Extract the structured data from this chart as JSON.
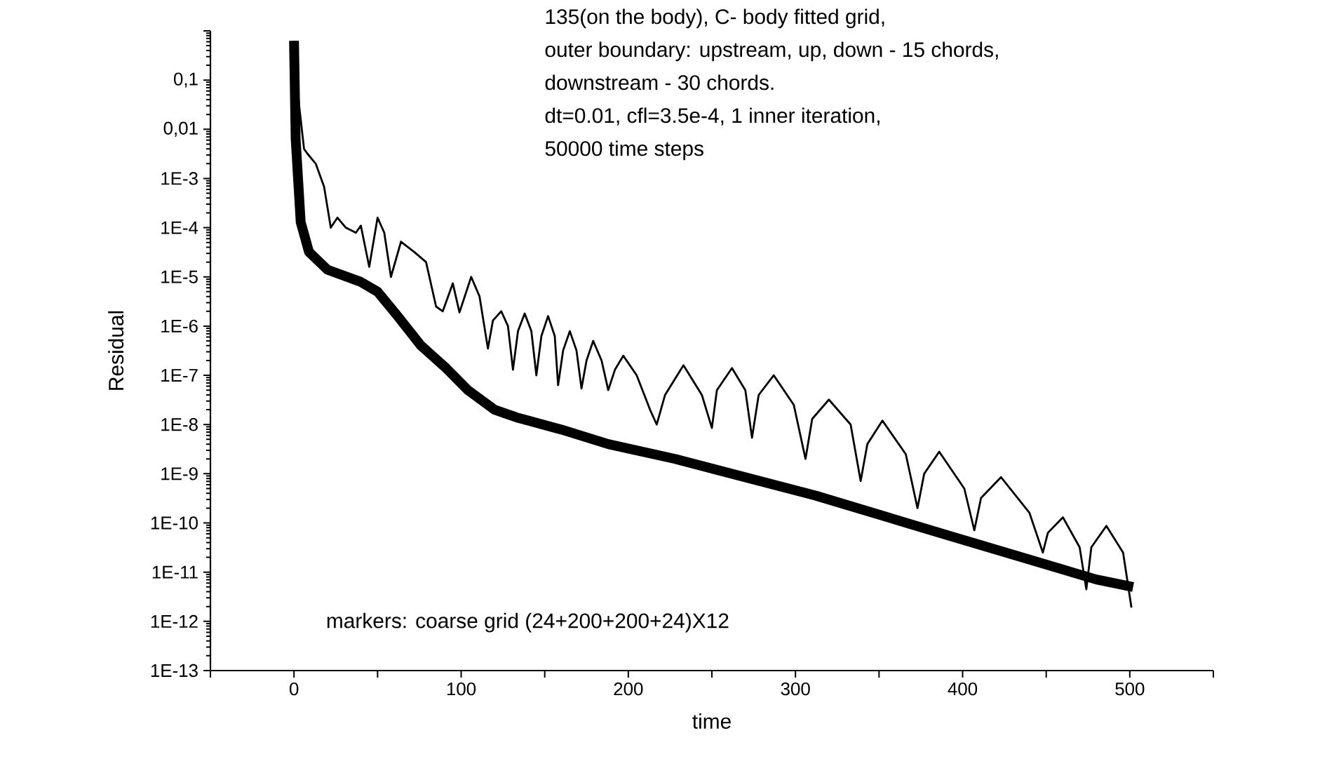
{
  "chart_data": {
    "type": "line",
    "xlabel": "time",
    "ylabel": "Residual",
    "log": true,
    "xlim": [
      -50,
      550
    ],
    "ylim": [
      1e-13,
      1
    ],
    "xticks": [
      {
        "value": -50,
        "label": null
      },
      0,
      {
        "value": 50,
        "label": null
      },
      100,
      {
        "value": 150,
        "label": null
      },
      200,
      {
        "value": 250,
        "label": null
      },
      300,
      {
        "value": 350,
        "label": null
      },
      400,
      {
        "value": 450,
        "label": null
      },
      500,
      {
        "value": 550,
        "label": null
      }
    ],
    "yticks": [
      {
        "value": 1,
        "label": null
      },
      {
        "value": 0.1,
        "label": "0,1"
      },
      {
        "value": 0.01,
        "label": "0,01"
      },
      {
        "value": 0.001,
        "label": "1E-3"
      },
      {
        "value": 0.0001,
        "label": "1E-4"
      },
      {
        "value": 1e-05,
        "label": "1E-5"
      },
      {
        "value": 1e-06,
        "label": "1E-6"
      },
      {
        "value": 1e-07,
        "label": "1E-7"
      },
      {
        "value": 1e-08,
        "label": "1E-8"
      },
      {
        "value": 1e-09,
        "label": "1E-9"
      },
      {
        "value": 1e-10,
        "label": "1E-10"
      },
      {
        "value": 1e-11,
        "label": "1E-11"
      },
      {
        "value": 1e-12,
        "label": "1E-12"
      },
      {
        "value": 1e-13,
        "label": "1E-13"
      }
    ],
    "annotations": [
      "135(on the body), C- body fitted grid,",
      "outer boundary: upstream, up, down - 15 chords,",
      "downstream - 30 chords.",
      "dt=0.01, cfl=3.5e-4, 1 inner iteration,",
      "50000 time steps",
      "markers: coarse grid (24+200+200+24)X12"
    ],
    "series": [
      {
        "color": "#000000",
        "x": [
          0,
          1,
          4,
          9,
          20,
          40,
          50,
          62,
          76,
          91,
          104,
          120,
          133,
          160,
          188,
          228,
          312,
          396,
          480,
          502
        ],
        "values": [
          0.63,
          0.0063,
          0.00013,
          3.2e-05,
          1.4e-05,
          7.9e-06,
          5e-06,
          1.6e-06,
          4e-07,
          1.4e-07,
          5e-08,
          2e-08,
          1.4e-08,
          7.9e-09,
          4e-09,
          2e-09,
          3.6e-10,
          5e-11,
          7.1e-12,
          5e-12
        ]
      },
      {
        "color": "#000000",
        "x": [
          0,
          3,
          6,
          8,
          13,
          18,
          22,
          26,
          31,
          37,
          40,
          45,
          50,
          54,
          58,
          64,
          72,
          79,
          85,
          89,
          95,
          99,
          106,
          111,
          116,
          119,
          124,
          128,
          131,
          134,
          138,
          142,
          145,
          148,
          152,
          156,
          158,
          161,
          165,
          169,
          172,
          175,
          179,
          184,
          188,
          192,
          197,
          205,
          213,
          217,
          222,
          233,
          244,
          250,
          253,
          262,
          270,
          274,
          278,
          287,
          299,
          306,
          310,
          320,
          333,
          339,
          343,
          352,
          366,
          373,
          377,
          386,
          401,
          407,
          411,
          423,
          440,
          448,
          451,
          460,
          470,
          474,
          477,
          486,
          496,
          501
        ],
        "values": [
          0.63,
          0.032,
          0.004,
          0.0032,
          0.002,
          0.00068,
          0.0001,
          0.00016,
          0.0001,
          7.9e-05,
          0.00011,
          1.6e-05,
          0.00016,
          7.9e-05,
          1e-05,
          5.2e-05,
          3.2e-05,
          2e-05,
          2.5e-06,
          2e-06,
          7.4e-06,
          1.9e-06,
          1e-05,
          4e-06,
          3.5e-07,
          1.3e-06,
          2e-06,
          1e-06,
          1.3e-07,
          7.9e-07,
          1.8e-06,
          7.9e-07,
          1e-07,
          6.3e-07,
          1.6e-06,
          6.3e-07,
          6.3e-08,
          3.2e-07,
          7.9e-07,
          3.2e-07,
          5.4e-08,
          2e-07,
          5e-07,
          2e-07,
          5e-08,
          1.3e-07,
          2.5e-07,
          1e-07,
          2e-08,
          1e-08,
          4e-08,
          1.6e-07,
          4e-08,
          8.5e-09,
          5e-08,
          1.4e-07,
          5e-08,
          5.4e-09,
          4e-08,
          1e-07,
          2.5e-08,
          2e-09,
          1.3e-08,
          3.2e-08,
          1e-08,
          7.1e-10,
          4e-09,
          1.2e-08,
          2.5e-09,
          2e-10,
          1e-09,
          2.8e-09,
          5e-10,
          7.1e-11,
          3.2e-10,
          8.5e-10,
          1.6e-10,
          2.5e-11,
          6.3e-11,
          1.3e-10,
          3.2e-11,
          4.5e-12,
          3.2e-11,
          8.7e-11,
          2.5e-11,
          1.9e-12
        ]
      }
    ]
  }
}
